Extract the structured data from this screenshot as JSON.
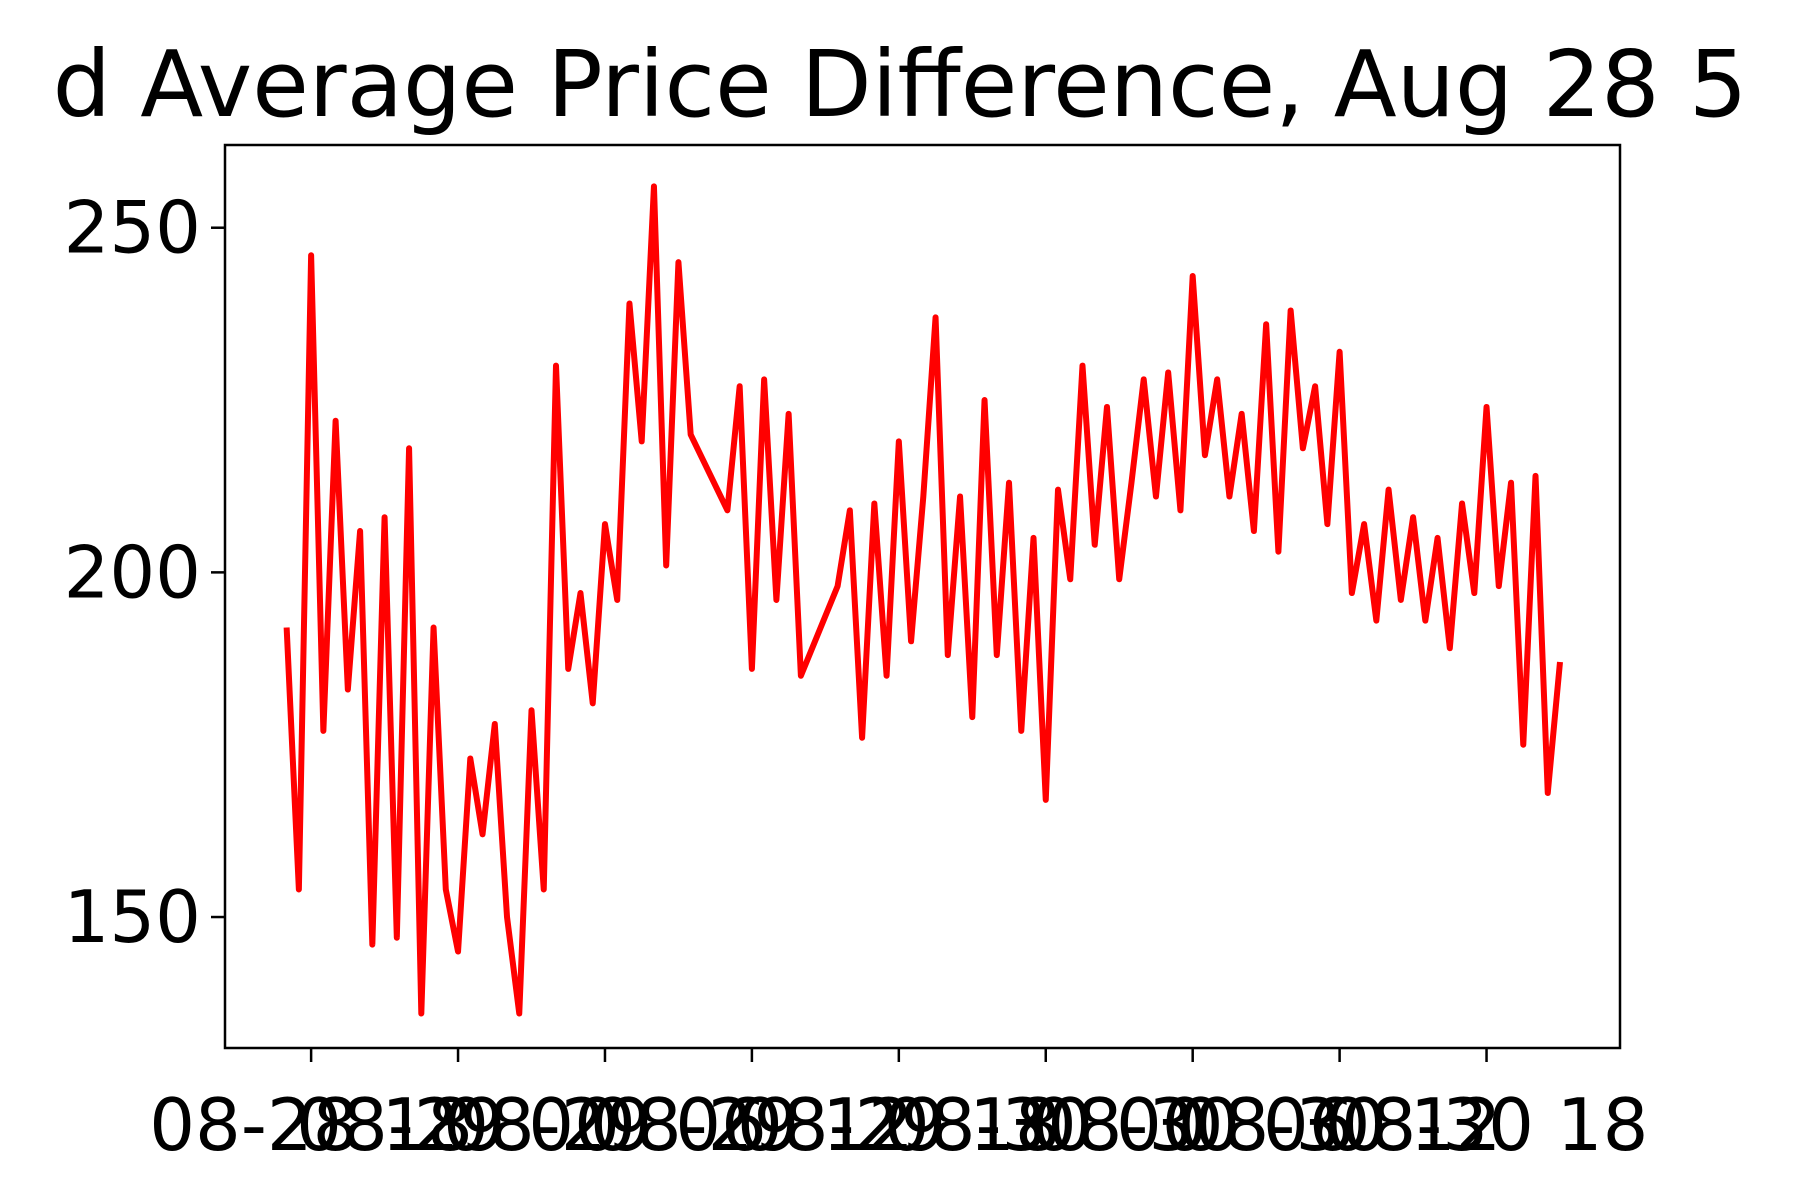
{
  "chart_data": {
    "type": "line",
    "title": "d Average Price Difference, Aug 28 5",
    "x": [
      "08-28 17:00",
      "08-28 17:30",
      "08-28 18:00",
      "08-28 18:30",
      "08-28 19:00",
      "08-28 19:30",
      "08-28 20:00",
      "08-28 20:30",
      "08-28 21:00",
      "08-28 21:30",
      "08-28 22:00",
      "08-28 22:30",
      "08-28 23:00",
      "08-28 23:30",
      "08-29 00:00",
      "08-29 00:30",
      "08-29 01:00",
      "08-29 01:30",
      "08-29 02:00",
      "08-29 02:30",
      "08-29 03:00",
      "08-29 03:30",
      "08-29 04:00",
      "08-29 04:30",
      "08-29 05:00",
      "08-29 05:30",
      "08-29 06:00",
      "08-29 06:30",
      "08-29 07:00",
      "08-29 07:30",
      "08-29 08:00",
      "08-29 08:30",
      "08-29 09:00",
      "08-29 09:30",
      "08-29 11:00",
      "08-29 11:30",
      "08-29 12:00",
      "08-29 12:30",
      "08-29 13:00",
      "08-29 13:30",
      "08-29 14:00",
      "08-29 15:30",
      "08-29 16:00",
      "08-29 16:30",
      "08-29 17:00",
      "08-29 17:30",
      "08-29 18:00",
      "08-29 18:30",
      "08-29 19:00",
      "08-29 19:30",
      "08-29 20:00",
      "08-29 20:30",
      "08-29 21:00",
      "08-29 21:30",
      "08-29 22:00",
      "08-29 22:30",
      "08-29 23:00",
      "08-29 23:30",
      "08-30 00:00",
      "08-30 00:30",
      "08-30 01:00",
      "08-30 01:30",
      "08-30 02:00",
      "08-30 02:30",
      "08-30 03:00",
      "08-30 03:30",
      "08-30 04:00",
      "08-30 04:30",
      "08-30 05:00",
      "08-30 05:30",
      "08-30 06:00",
      "08-30 06:30",
      "08-30 07:00",
      "08-30 07:30",
      "08-30 08:00",
      "08-30 08:30",
      "08-30 09:00",
      "08-30 09:30",
      "08-30 10:00",
      "08-30 10:30",
      "08-30 11:00",
      "08-30 11:30",
      "08-30 12:00",
      "08-30 12:30",
      "08-30 13:00",
      "08-30 13:30",
      "08-30 14:00",
      "08-30 14:30",
      "08-30 15:00",
      "08-30 15:30",
      "08-30 16:00",
      "08-30 16:30",
      "08-30 17:00",
      "08-30 17:30",
      "08-30 18:00",
      "08-30 18:30",
      "08-30 19:00",
      "08-30 19:30",
      "08-30 20:00",
      "08-30 20:30",
      "08-30 21:00"
    ],
    "series": [
      {
        "color": "#ff0000",
        "values": [
          192,
          154,
          246,
          177,
          222,
          183,
          206,
          146,
          208,
          147,
          218,
          136,
          192,
          154,
          145,
          173,
          162,
          178,
          150,
          136,
          180,
          154,
          230,
          186,
          197,
          181,
          207,
          196,
          239,
          219,
          256,
          201,
          245,
          220,
          209,
          227,
          186,
          228,
          196,
          223,
          185,
          198,
          209,
          176,
          210,
          185,
          219,
          190,
          211,
          237,
          188,
          211,
          179,
          225,
          188,
          213,
          177,
          205,
          167,
          212,
          199,
          230,
          204,
          224,
          199,
          213,
          228,
          211,
          229,
          209,
          243,
          217,
          228,
          211,
          223,
          206,
          236,
          203,
          238,
          218,
          227,
          207,
          232,
          197,
          207,
          193,
          212,
          196,
          208,
          193,
          205,
          189,
          210,
          197,
          224,
          198,
          213,
          175,
          214,
          168,
          187
        ]
      }
    ],
    "xlim": [
      "08-28 14:29",
      "08-30 23:27"
    ],
    "xticks": [
      {
        "value": "08-28 18:00",
        "label": "08-28 18"
      },
      {
        "value": "08-29 00:00",
        "label": "08-29 00"
      },
      {
        "value": "08-29 06:00",
        "label": "08-29 06"
      },
      {
        "value": "08-29 12:00",
        "label": "08-29 12"
      },
      {
        "value": "08-29 18:00",
        "label": "08-29 18"
      },
      {
        "value": "08-30 00:00",
        "label": "08-30 00"
      },
      {
        "value": "08-30 06:00",
        "label": "08-30 06"
      },
      {
        "value": "08-30 12:00",
        "label": "08-30 12"
      },
      {
        "value": "08-30 18:00",
        "label": "08-30 18"
      }
    ],
    "ylim": [
      131,
      262
    ],
    "yticks": [
      150,
      200,
      250
    ]
  }
}
